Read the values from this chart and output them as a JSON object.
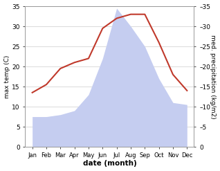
{
  "months": [
    "Jan",
    "Feb",
    "Mar",
    "Apr",
    "May",
    "Jun",
    "Jul",
    "Aug",
    "Sep",
    "Oct",
    "Nov",
    "Dec"
  ],
  "month_indices": [
    0,
    1,
    2,
    3,
    4,
    5,
    6,
    7,
    8,
    9,
    10,
    11
  ],
  "temperature": [
    13.5,
    15.5,
    19.5,
    21.0,
    22.0,
    29.5,
    32.0,
    33.0,
    33.0,
    26.0,
    18.0,
    14.0
  ],
  "precipitation": [
    7.5,
    7.5,
    8.0,
    9.0,
    13.0,
    22.0,
    34.5,
    30.0,
    25.0,
    17.0,
    11.0,
    10.5
  ],
  "temp_color": "#c0392b",
  "precip_fill_color": "#c5cdf0",
  "bg_color": "#ffffff",
  "spine_color": "#999999",
  "ylabel_left": "max temp (C)",
  "ylabel_right": "med. precipitation (kg/m2)",
  "xlabel": "date (month)",
  "ylim": [
    0,
    35
  ],
  "yticks": [
    0,
    5,
    10,
    15,
    20,
    25,
    30,
    35
  ],
  "right_tick_labels": [
    "0",
    "–5",
    "–10",
    "–15",
    "–20",
    "–25",
    "–30",
    "–35"
  ],
  "figwidth": 3.18,
  "figheight": 2.47,
  "dpi": 100
}
